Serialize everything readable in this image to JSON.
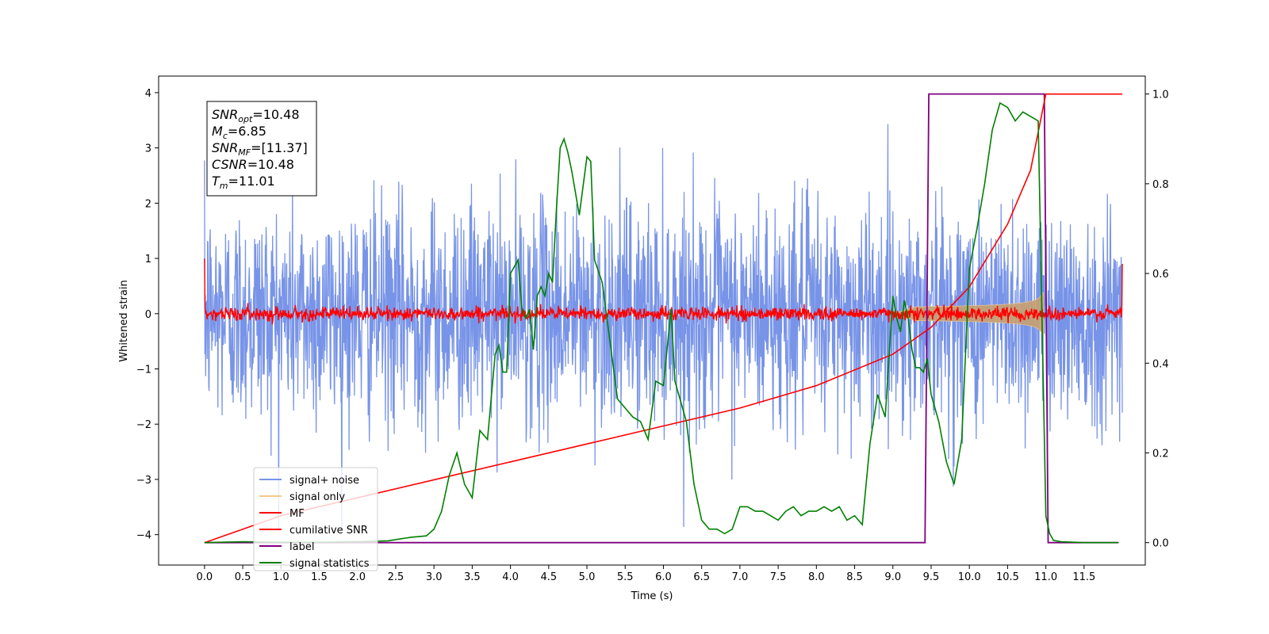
{
  "chart_data": {
    "type": "line",
    "title": "",
    "xlabel": "Time (s)",
    "ylabel": "Whitened strain",
    "xlim": [
      -0.6,
      12.3
    ],
    "ylim": [
      -4.55,
      4.3
    ],
    "y2lim": [
      -0.05,
      1.04
    ],
    "x_ticks": [
      "0.0",
      "0.5",
      "1.0",
      "1.5",
      "2.0",
      "2.5",
      "3.0",
      "3.5",
      "4.0",
      "4.5",
      "5.0",
      "5.5",
      "6.0",
      "6.5",
      "7.0",
      "7.5",
      "8.0",
      "8.5",
      "9.0",
      "9.5",
      "10.0",
      "10.5",
      "11.0",
      "11.5"
    ],
    "y_ticks": [
      "4",
      "3",
      "2",
      "1",
      "0",
      "−1",
      "−2",
      "−3",
      "−4"
    ],
    "y2_ticks": [
      "1.0",
      "0.8",
      "0.6",
      "0.4",
      "0.2",
      "0.0"
    ],
    "grid": false,
    "legend_position": "lower-left",
    "stats_box": {
      "lines": [
        {
          "base": "SNR",
          "sub": "opt",
          "value": "=10.48"
        },
        {
          "base": "M",
          "sub": "c",
          "value": "=6.85"
        },
        {
          "base": "SNR",
          "sub": "MF",
          "value": "=[11.37]"
        },
        {
          "base": "CSNR",
          "sub": "",
          "value": "=10.48"
        },
        {
          "base": "T",
          "sub": "m",
          "value": "=11.01"
        }
      ]
    },
    "series": [
      {
        "name": "signal+ noise",
        "color": "#7894e8",
        "axis": "left",
        "duration": 12.0,
        "noise_std": 1.0,
        "peak_abs": 3.9
      },
      {
        "name": "signal only",
        "color": "#f5c98a",
        "axis": "left",
        "onset": 9.0,
        "merger": 10.97,
        "max_amplitude": 0.65
      },
      {
        "name": "MF",
        "color": "#ff0000",
        "axis": "left",
        "noise_std": 0.06
      },
      {
        "name": "cumilative SNR",
        "color": "#ff0000",
        "axis": "right",
        "x": [
          0.0,
          1.0,
          2.0,
          3.0,
          4.0,
          5.0,
          6.0,
          7.0,
          8.0,
          9.0,
          9.5,
          10.0,
          10.5,
          10.8,
          11.0,
          12.0
        ],
        "y": [
          0.0,
          0.06,
          0.1,
          0.14,
          0.18,
          0.22,
          0.26,
          0.3,
          0.35,
          0.42,
          0.48,
          0.57,
          0.71,
          0.83,
          1.0,
          1.0
        ]
      },
      {
        "name": "label",
        "color": "#800080",
        "axis": "right",
        "x": [
          0.0,
          9.42,
          9.47,
          10.98,
          11.03,
          11.95
        ],
        "y": [
          0.0,
          0.0,
          1.0,
          1.0,
          0.0,
          0.0
        ]
      },
      {
        "name": "signal statistics",
        "color": "#008000",
        "axis": "right",
        "x": [
          0.0,
          0.5,
          1.0,
          1.5,
          2.0,
          2.4,
          2.7,
          2.9,
          3.0,
          3.1,
          3.2,
          3.3,
          3.4,
          3.5,
          3.6,
          3.7,
          3.8,
          3.85,
          3.9,
          3.95,
          4.0,
          4.1,
          4.15,
          4.2,
          4.25,
          4.3,
          4.35,
          4.4,
          4.45,
          4.5,
          4.55,
          4.6,
          4.65,
          4.7,
          4.75,
          4.8,
          4.85,
          4.9,
          5.0,
          5.05,
          5.1,
          5.2,
          5.3,
          5.4,
          5.5,
          5.6,
          5.7,
          5.8,
          5.9,
          6.0,
          6.1,
          6.15,
          6.2,
          6.25,
          6.3,
          6.4,
          6.5,
          6.6,
          6.7,
          6.8,
          6.9,
          7.0,
          7.1,
          7.2,
          7.3,
          7.4,
          7.5,
          7.6,
          7.7,
          7.8,
          7.9,
          8.0,
          8.1,
          8.2,
          8.3,
          8.4,
          8.5,
          8.6,
          8.7,
          8.8,
          8.9,
          9.0,
          9.05,
          9.1,
          9.15,
          9.2,
          9.25,
          9.3,
          9.35,
          9.4,
          9.45,
          9.5,
          9.6,
          9.7,
          9.8,
          9.9,
          10.0,
          10.1,
          10.2,
          10.3,
          10.4,
          10.5,
          10.6,
          10.7,
          10.8,
          10.9,
          10.95,
          11.0,
          11.05,
          11.1,
          11.2,
          11.5,
          11.95
        ],
        "y": [
          0.0,
          0.002,
          0.001,
          0.001,
          0.002,
          0.004,
          0.012,
          0.015,
          0.03,
          0.07,
          0.15,
          0.2,
          0.13,
          0.1,
          0.25,
          0.23,
          0.42,
          0.44,
          0.38,
          0.38,
          0.6,
          0.63,
          0.52,
          0.5,
          0.52,
          0.43,
          0.55,
          0.57,
          0.55,
          0.6,
          0.58,
          0.74,
          0.88,
          0.9,
          0.87,
          0.83,
          0.78,
          0.73,
          0.86,
          0.85,
          0.63,
          0.58,
          0.45,
          0.32,
          0.3,
          0.28,
          0.27,
          0.23,
          0.36,
          0.35,
          0.52,
          0.36,
          0.33,
          0.3,
          0.27,
          0.13,
          0.05,
          0.03,
          0.03,
          0.02,
          0.03,
          0.08,
          0.08,
          0.07,
          0.07,
          0.06,
          0.05,
          0.07,
          0.08,
          0.06,
          0.07,
          0.07,
          0.08,
          0.07,
          0.08,
          0.05,
          0.06,
          0.04,
          0.22,
          0.33,
          0.28,
          0.55,
          0.5,
          0.47,
          0.54,
          0.5,
          0.43,
          0.39,
          0.39,
          0.38,
          0.41,
          0.33,
          0.27,
          0.18,
          0.13,
          0.23,
          0.61,
          0.7,
          0.8,
          0.92,
          0.98,
          0.97,
          0.94,
          0.96,
          0.95,
          0.94,
          0.5,
          0.06,
          0.02,
          0.005,
          0.002,
          0.0,
          0.0
        ]
      }
    ]
  }
}
